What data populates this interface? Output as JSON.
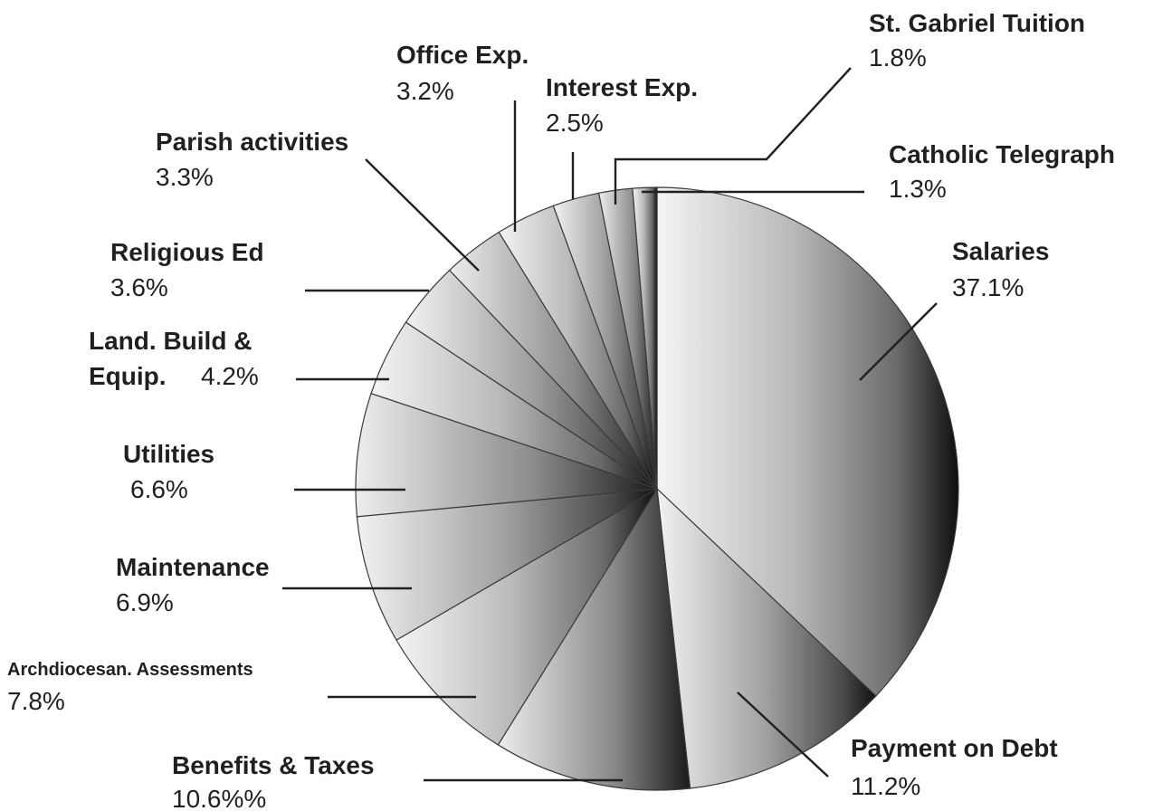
{
  "chart_data": {
    "type": "pie",
    "title": "",
    "slices": [
      {
        "label": "Salaries",
        "pct_text": "37.1%",
        "value": 37.1
      },
      {
        "label": "Payment on Debt",
        "pct_text": "11.2%",
        "value": 11.2
      },
      {
        "label": "Benefits & Taxes",
        "pct_text": "10.6%%",
        "value": 10.6
      },
      {
        "label": "Archdiocesan. Assessments",
        "pct_text": "7.8%",
        "value": 7.8
      },
      {
        "label": "Maintenance",
        "pct_text": "6.9%",
        "value": 6.9
      },
      {
        "label": "Utilities",
        "pct_text": "6.6%",
        "value": 6.6
      },
      {
        "label_line1": "Land. Build &",
        "label_line2": "Equip.",
        "pct_text": "4.2%",
        "value": 4.2
      },
      {
        "label": "Religious Ed",
        "pct_text": "3.6%",
        "value": 3.6
      },
      {
        "label": "Parish activities",
        "pct_text": "3.3%",
        "value": 3.3
      },
      {
        "label": "Office Exp.",
        "pct_text": "3.2%",
        "value": 3.2
      },
      {
        "label": "Interest Exp.",
        "pct_text": "2.5%",
        "value": 2.5
      },
      {
        "label": "St. Gabriel Tuition",
        "pct_text": "1.8%",
        "value": 1.8
      },
      {
        "label": "Catholic Telegraph",
        "pct_text": "1.3%",
        "value": 1.3
      }
    ]
  }
}
